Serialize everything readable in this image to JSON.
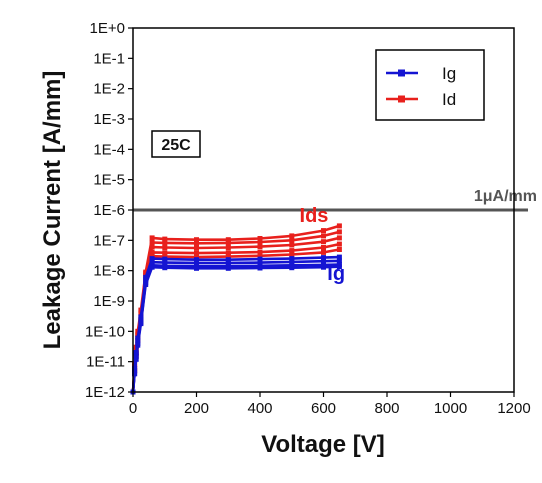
{
  "chart_data": {
    "type": "line",
    "xlabel": "Voltage [V]",
    "ylabel": "Leakage Current [A/mm]",
    "xlim": [
      0,
      1200
    ],
    "ylim": [
      1e-12,
      1
    ],
    "yscale": "log",
    "grid": false,
    "legend_position": "top-right",
    "x_ticks": [
      0,
      200,
      400,
      600,
      800,
      1000,
      1200
    ],
    "x_tick_labels": [
      "0",
      "200",
      "400",
      "600",
      "800",
      "1000",
      "1200"
    ],
    "y_ticks": [
      1,
      0.1,
      0.01,
      0.001,
      0.0001,
      1e-05,
      1e-06,
      1e-07,
      1e-08,
      1e-09,
      1e-10,
      1e-11,
      1e-12
    ],
    "y_tick_labels": [
      "1E+0",
      "1E-1",
      "1E-2",
      "1E-3",
      "1E-4",
      "1E-5",
      "1E-6",
      "1E-7",
      "1E-8",
      "1E-9",
      "1E-10",
      "1E-11",
      "1E-12"
    ],
    "series": [
      {
        "name": "Id",
        "color": "#e8201c",
        "curves": [
          {
            "x": [
              0,
              5,
              10,
              15,
              25,
              40,
              60,
              100,
              200,
              300,
              400,
              500,
              600,
              650
            ],
            "y": [
              1e-12,
              8e-12,
              3e-11,
              1e-10,
              5e-10,
              9e-09,
              1.2e-07,
              1.1e-07,
              1.05e-07,
              1.05e-07,
              1.15e-07,
              1.4e-07,
              2.1e-07,
              3e-07
            ]
          },
          {
            "x": [
              0,
              5,
              10,
              15,
              25,
              40,
              60,
              100,
              200,
              300,
              400,
              500,
              600,
              650
            ],
            "y": [
              1e-12,
              7e-12,
              2.5e-11,
              8e-11,
              4e-10,
              8e-09,
              8.5e-08,
              8.2e-08,
              8e-08,
              8.2e-08,
              8.8e-08,
              1e-07,
              1.4e-07,
              1.9e-07
            ]
          },
          {
            "x": [
              0,
              5,
              10,
              15,
              25,
              40,
              60,
              100,
              200,
              300,
              400,
              500,
              600,
              650
            ],
            "y": [
              1e-12,
              6e-12,
              2e-11,
              7e-11,
              3e-10,
              7e-09,
              6e-08,
              5.8e-08,
              5.6e-08,
              5.8e-08,
              6.2e-08,
              7e-08,
              9e-08,
              1.2e-07
            ]
          },
          {
            "x": [
              0,
              5,
              10,
              15,
              25,
              40,
              60,
              100,
              200,
              300,
              400,
              500,
              600,
              650
            ],
            "y": [
              1e-12,
              5e-12,
              1.8e-11,
              6e-11,
              2.5e-10,
              6e-09,
              4e-08,
              3.9e-08,
              3.8e-08,
              3.9e-08,
              4.1e-08,
              4.6e-08,
              5.8e-08,
              7.5e-08
            ]
          },
          {
            "x": [
              0,
              5,
              10,
              15,
              25,
              40,
              60,
              100,
              200,
              300,
              400,
              500,
              600,
              650
            ],
            "y": [
              1e-12,
              5e-12,
              1.5e-11,
              5e-11,
              2e-10,
              5e-09,
              3e-08,
              2.9e-08,
              2.8e-08,
              2.9e-08,
              3.1e-08,
              3.4e-08,
              4e-08,
              5e-08
            ]
          }
        ]
      },
      {
        "name": "Ig",
        "color": "#1414d2",
        "curves": [
          {
            "x": [
              0,
              5,
              10,
              15,
              25,
              40,
              60,
              100,
              200,
              300,
              400,
              500,
              600,
              650
            ],
            "y": [
              1e-12,
              6e-12,
              2e-11,
              6e-11,
              3e-10,
              6e-09,
              2.5e-08,
              2.4e-08,
              2.3e-08,
              2.3e-08,
              2.4e-08,
              2.5e-08,
              2.7e-08,
              2.8e-08
            ]
          },
          {
            "x": [
              0,
              5,
              10,
              15,
              25,
              40,
              60,
              100,
              200,
              300,
              400,
              500,
              600,
              650
            ],
            "y": [
              1e-12,
              5e-12,
              1.8e-11,
              5e-11,
              2.5e-10,
              5e-09,
              1.9e-08,
              1.85e-08,
              1.8e-08,
              1.8e-08,
              1.85e-08,
              1.95e-08,
              2.05e-08,
              2.1e-08
            ]
          },
          {
            "x": [
              0,
              5,
              10,
              15,
              25,
              40,
              60,
              100,
              200,
              300,
              400,
              500,
              600,
              650
            ],
            "y": [
              1e-12,
              4e-12,
              1.5e-11,
              4e-11,
              2e-10,
              4e-09,
              1.5e-08,
              1.45e-08,
              1.4e-08,
              1.4e-08,
              1.45e-08,
              1.5e-08,
              1.55e-08,
              1.6e-08
            ]
          },
          {
            "x": [
              0,
              5,
              10,
              15,
              25,
              40,
              60,
              100,
              200,
              300,
              400,
              500,
              600,
              650
            ],
            "y": [
              1e-12,
              4e-12,
              1.2e-11,
              3.5e-11,
              1.8e-10,
              3.5e-09,
              1.3e-08,
              1.25e-08,
              1.2e-08,
              1.2e-08,
              1.22e-08,
              1.25e-08,
              1.3e-08,
              1.35e-08
            ]
          }
        ]
      }
    ],
    "reference_line": {
      "y": 1e-06,
      "label": "1μA/mm",
      "color": "#555555"
    },
    "temperature_label": "25C",
    "annotations": [
      {
        "text": "Ids",
        "x": 570,
        "y": 4e-07,
        "color": "#e8201c"
      },
      {
        "text": "Ig",
        "x": 640,
        "y": 5e-09,
        "color": "#1414d2"
      }
    ],
    "legend": [
      {
        "label": "Ig",
        "color": "#1414d2"
      },
      {
        "label": "Id",
        "color": "#e8201c"
      }
    ]
  }
}
